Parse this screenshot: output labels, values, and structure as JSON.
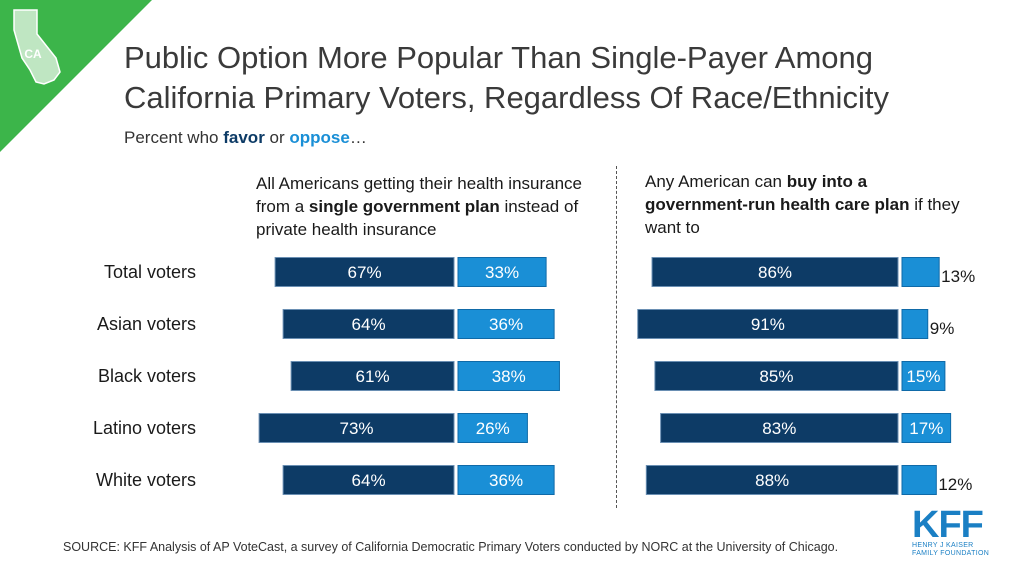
{
  "header": {
    "title_line1": "Public Option More Popular Than Single-Payer Among",
    "title_line2": "California Primary Voters, Regardless Of Race/Ethnicity",
    "subtitle_prefix": "Percent who ",
    "subtitle_favor": "favor",
    "subtitle_mid": " or ",
    "subtitle_oppose": "oppose",
    "subtitle_suffix": "…",
    "state_badge": "CA"
  },
  "panels": {
    "left": {
      "part1": "All Americans getting their health insurance from a ",
      "bold": "single government plan",
      "part2": " instead of private health insurance"
    },
    "right": {
      "part1": "Any American can ",
      "bold": "buy into a government-run health care plan",
      "part2": " if they want to"
    }
  },
  "colors": {
    "favor": "#0d3b66",
    "oppose": "#1a8fd6",
    "corner": "#3cb54a",
    "text": "#1a1a1a"
  },
  "chart_data": [
    {
      "type": "bar",
      "orientation": "horizontal-diverging",
      "title": "All Americans getting their health insurance from a single government plan instead of private health insurance",
      "categories": [
        "Total voters",
        "Asian voters",
        "Black voters",
        "Latino voters",
        "White voters"
      ],
      "series": [
        {
          "name": "favor",
          "values": [
            67,
            64,
            61,
            73,
            64
          ],
          "labels": [
            "67%",
            "64%",
            "61%",
            "73%",
            "64%"
          ]
        },
        {
          "name": "oppose",
          "values": [
            33,
            36,
            38,
            26,
            36
          ],
          "labels": [
            "33%",
            "36%",
            "38%",
            "26%",
            "36%"
          ]
        }
      ],
      "unit": "%"
    },
    {
      "type": "bar",
      "orientation": "horizontal-diverging",
      "title": "Any American can buy into a government-run health care plan if they want to",
      "categories": [
        "Total voters",
        "Asian voters",
        "Black voters",
        "Latino voters",
        "White voters"
      ],
      "series": [
        {
          "name": "favor",
          "values": [
            86,
            91,
            85,
            83,
            88
          ],
          "labels": [
            "86%",
            "91%",
            "85%",
            "83%",
            "88%"
          ]
        },
        {
          "name": "oppose",
          "values": [
            13,
            9,
            15,
            17,
            12
          ],
          "labels": [
            "13%",
            "9%",
            "15%",
            "17%",
            "12%"
          ]
        }
      ],
      "unit": "%"
    }
  ],
  "footer": {
    "source": "SOURCE: KFF Analysis of AP VoteCast, a survey of California Democratic Primary Voters conducted by NORC at the University of Chicago.",
    "logo_letters": "KFF",
    "logo_line1": "HENRY J KAISER",
    "logo_line2": "FAMILY FOUNDATION"
  }
}
